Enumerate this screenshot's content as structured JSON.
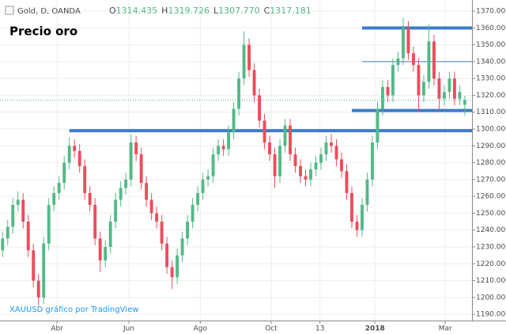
{
  "chart_data": {
    "type": "candlestick",
    "title": "Precio oro",
    "symbol": "Gold, D, OANDA",
    "ohlc_labels": [
      "O",
      "H",
      "L",
      "C"
    ],
    "last_candle_labels": [
      "1314.435",
      "1319.726",
      "1307.770",
      "1317.181"
    ],
    "watermark": "XAUUSD gráfico por TradingView",
    "up_color": "#53b987",
    "down_color": "#eb4d5c",
    "level_color": "#3d7cc9",
    "open": [
      1228,
      1235,
      1242,
      1255,
      1258,
      1245,
      1228,
      1210,
      1200,
      1232,
      1255,
      1262,
      1268,
      1280,
      1290,
      1287,
      1278,
      1262,
      1255,
      1235,
      1222,
      1230,
      1245,
      1258,
      1265,
      1270,
      1292,
      1285,
      1268,
      1258,
      1250,
      1245,
      1232,
      1218,
      1212,
      1225,
      1235,
      1245,
      1255,
      1262,
      1270,
      1272,
      1285,
      1290,
      1288,
      1298,
      1312,
      1330,
      1350,
      1335,
      1320,
      1305,
      1292,
      1285,
      1272,
      1290,
      1302,
      1285,
      1278,
      1272,
      1270,
      1276,
      1280,
      1285,
      1292,
      1290,
      1282,
      1275,
      1262,
      1245,
      1240,
      1255,
      1270,
      1292,
      1312,
      1325,
      1320,
      1338,
      1342,
      1360,
      1345,
      1338,
      1320,
      1328,
      1352,
      1330,
      1318,
      1322,
      1330,
      1318,
      1314.435
    ],
    "high": [
      1239,
      1246,
      1259,
      1263,
      1262,
      1249,
      1232,
      1214,
      1236,
      1259,
      1266,
      1272,
      1284,
      1295,
      1294,
      1291,
      1282,
      1266,
      1259,
      1239,
      1234,
      1249,
      1262,
      1269,
      1274,
      1297,
      1296,
      1289,
      1272,
      1262,
      1254,
      1249,
      1236,
      1222,
      1229,
      1239,
      1249,
      1259,
      1266,
      1274,
      1276,
      1289,
      1294,
      1294,
      1302,
      1316,
      1334,
      1358,
      1354,
      1339,
      1324,
      1309,
      1296,
      1289,
      1294,
      1306,
      1306,
      1289,
      1282,
      1276,
      1280,
      1284,
      1289,
      1296,
      1297,
      1294,
      1286,
      1279,
      1266,
      1249,
      1259,
      1274,
      1296,
      1316,
      1329,
      1329,
      1342,
      1346,
      1366,
      1364,
      1349,
      1342,
      1332,
      1362,
      1356,
      1334,
      1326,
      1334,
      1334,
      1326,
      1319.726
    ],
    "low": [
      1224,
      1231,
      1238,
      1251,
      1241,
      1224,
      1206,
      1195,
      1196,
      1228,
      1251,
      1258,
      1264,
      1276,
      1283,
      1274,
      1258,
      1251,
      1231,
      1215,
      1218,
      1226,
      1241,
      1254,
      1261,
      1266,
      1281,
      1264,
      1254,
      1246,
      1241,
      1228,
      1214,
      1205,
      1208,
      1221,
      1231,
      1241,
      1251,
      1258,
      1266,
      1268,
      1281,
      1284,
      1284,
      1294,
      1308,
      1326,
      1331,
      1316,
      1301,
      1288,
      1281,
      1265,
      1268,
      1286,
      1281,
      1274,
      1268,
      1266,
      1266,
      1272,
      1276,
      1281,
      1286,
      1278,
      1271,
      1258,
      1241,
      1236,
      1236,
      1251,
      1266,
      1288,
      1308,
      1316,
      1316,
      1334,
      1338,
      1341,
      1334,
      1310,
      1316,
      1324,
      1326,
      1310,
      1314,
      1318,
      1314,
      1314,
      1307.77
    ],
    "close": [
      1235,
      1242,
      1255,
      1258,
      1245,
      1228,
      1210,
      1200,
      1232,
      1255,
      1262,
      1268,
      1280,
      1290,
      1287,
      1278,
      1262,
      1255,
      1235,
      1222,
      1230,
      1245,
      1258,
      1265,
      1270,
      1292,
      1285,
      1268,
      1258,
      1250,
      1245,
      1232,
      1218,
      1212,
      1225,
      1235,
      1245,
      1255,
      1262,
      1270,
      1272,
      1285,
      1290,
      1288,
      1298,
      1312,
      1330,
      1350,
      1335,
      1320,
      1305,
      1292,
      1285,
      1272,
      1290,
      1302,
      1285,
      1278,
      1272,
      1270,
      1276,
      1280,
      1285,
      1292,
      1290,
      1282,
      1275,
      1262,
      1245,
      1240,
      1255,
      1270,
      1292,
      1312,
      1325,
      1320,
      1338,
      1342,
      1360,
      1345,
      1338,
      1320,
      1328,
      1352,
      1330,
      1318,
      1322,
      1330,
      1318,
      1322,
      1317.181
    ],
    "xlim": [
      -0.5,
      91.4
    ],
    "xticks": [
      {
        "value": 10.6,
        "label": "Abr"
      },
      {
        "value": 24.6,
        "label": "Jun"
      },
      {
        "value": 38.5,
        "label": "Ago"
      },
      {
        "value": 52.3,
        "label": "Oct"
      },
      {
        "value": 61.8,
        "label": "13"
      },
      {
        "value": 72.5,
        "label": "2018"
      },
      {
        "value": 86.2,
        "label": "Mar"
      }
    ],
    "ylim": [
      1186.3,
      1376.6
    ],
    "yticks": [
      {
        "value": 1190,
        "label": "1190.000"
      },
      {
        "value": 1200,
        "label": "1200.000"
      },
      {
        "value": 1210,
        "label": "1210.000"
      },
      {
        "value": 1220,
        "label": "1220.000"
      },
      {
        "value": 1230,
        "label": "1230.000"
      },
      {
        "value": 1240,
        "label": "1240.000"
      },
      {
        "value": 1250,
        "label": "1250.000"
      },
      {
        "value": 1260,
        "label": "1260.000"
      },
      {
        "value": 1270,
        "label": "1270.000"
      },
      {
        "value": 1280,
        "label": "1280.000"
      },
      {
        "value": 1290,
        "label": "1290.000"
      },
      {
        "value": 1300,
        "label": "1300.000"
      },
      {
        "value": 1310,
        "label": "1310.000"
      },
      {
        "value": 1320,
        "label": "1320.000"
      },
      {
        "value": 1330,
        "label": "1330.000"
      },
      {
        "value": 1340,
        "label": "1340.000"
      },
      {
        "value": 1350,
        "label": "1350.000"
      },
      {
        "value": 1360,
        "label": "1360.000"
      },
      {
        "value": 1370,
        "label": "1370.000"
      }
    ],
    "grid": true,
    "levels": [
      {
        "value": 1360,
        "start": 70,
        "style": "thick"
      },
      {
        "value": 1340,
        "start": 70,
        "style": "thin"
      },
      {
        "value": 1311,
        "start": 68,
        "style": "thick"
      },
      {
        "value": 1299,
        "start": 13,
        "style": "thick"
      }
    ],
    "last_price_line": true
  }
}
